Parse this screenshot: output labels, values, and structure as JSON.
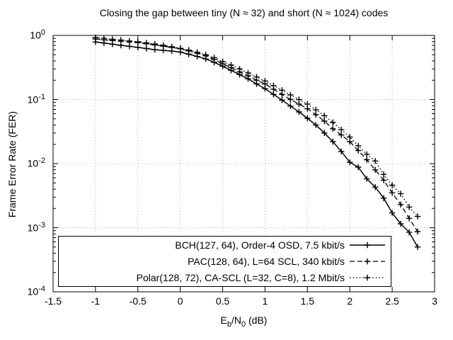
{
  "title": "Closing the gap between tiny (N ≈ 32) and short (N ≈ 1024) codes",
  "axes": {
    "ylabel": "Frame Error Rate (FER)",
    "xlabel_plain": "Eb/N0 (dB)",
    "xlabel_parts": {
      "p1": "E",
      "s1": "b",
      "p2": "/N",
      "s2": "0",
      "p3": " (dB)"
    },
    "x_ticks": [
      "-1.5",
      "-1",
      "-0.5",
      "0",
      "0.5",
      "1",
      "1.5",
      "2",
      "2.5",
      "3"
    ],
    "y_tick_exponents": [
      0,
      -1,
      -2,
      -3,
      -4
    ],
    "x_range": [
      -1.5,
      3
    ],
    "y_range": [
      0.0001,
      1
    ],
    "y_scale": "log",
    "grid": true
  },
  "colors": {
    "line": "#000000",
    "grid": "#b0b0b0",
    "background": "#ffffff",
    "text": "#000000"
  },
  "chart_data": {
    "type": "line",
    "title": "Closing the gap between tiny (N ≈ 32) and short (N ≈ 1024) codes",
    "xlabel": "Eb/N0 (dB)",
    "ylabel": "Frame Error Rate (FER)",
    "xlim": [
      -1.5,
      3
    ],
    "ylim": [
      0.0001,
      1
    ],
    "yscale": "log",
    "grid": true,
    "legend_position": "inside bottom, right-aligned labels",
    "x": [
      -1.0,
      -0.9,
      -0.8,
      -0.7,
      -0.6,
      -0.5,
      -0.4,
      -0.3,
      -0.2,
      -0.1,
      0.0,
      0.1,
      0.2,
      0.3,
      0.4,
      0.5,
      0.6,
      0.7,
      0.8,
      0.9,
      1.0,
      1.1,
      1.2,
      1.3,
      1.4,
      1.5,
      1.6,
      1.7,
      1.8,
      1.9,
      2.0,
      2.1,
      2.2,
      2.3,
      2.4,
      2.5,
      2.6,
      2.7,
      2.8
    ],
    "series": [
      {
        "name": "BCH(127, 64), Order-4 OSD, 7.5 kbit/s",
        "style": "solid",
        "marker": "plus",
        "values": [
          0.79,
          0.76,
          0.73,
          0.7,
          0.675,
          0.65,
          0.625,
          0.6,
          0.585,
          0.57,
          0.55,
          0.51,
          0.47,
          0.43,
          0.38,
          0.33,
          0.285,
          0.245,
          0.21,
          0.175,
          0.148,
          0.12,
          0.098,
          0.079,
          0.064,
          0.051,
          0.04,
          0.03,
          0.022,
          0.0155,
          0.0105,
          0.0088,
          0.0058,
          0.0043,
          0.0029,
          0.0017,
          0.00115,
          0.00085,
          0.0005
        ]
      },
      {
        "name": "PAC(128, 64), L=64 SCL, 340 kbit/s",
        "style": "dashed",
        "marker": "plus",
        "values": [
          0.88,
          0.855,
          0.83,
          0.81,
          0.79,
          0.77,
          0.74,
          0.71,
          0.68,
          0.65,
          0.62,
          0.575,
          0.53,
          0.48,
          0.42,
          0.36,
          0.315,
          0.27,
          0.235,
          0.2,
          0.175,
          0.145,
          0.12,
          0.1,
          0.085,
          0.072,
          0.058,
          0.046,
          0.035,
          0.028,
          0.022,
          0.016,
          0.0115,
          0.008,
          0.0055,
          0.0035,
          0.0023,
          0.0014,
          0.00087
        ]
      },
      {
        "name": "Polar(128, 72), CA-SCL (L=32, C=8), 1.2 Mbit/s",
        "style": "dotted",
        "marker": "plus",
        "values": [
          0.93,
          0.9,
          0.87,
          0.845,
          0.82,
          0.795,
          0.765,
          0.735,
          0.7,
          0.665,
          0.63,
          0.59,
          0.545,
          0.5,
          0.45,
          0.39,
          0.345,
          0.3,
          0.26,
          0.225,
          0.195,
          0.165,
          0.14,
          0.118,
          0.1,
          0.085,
          0.069,
          0.056,
          0.044,
          0.034,
          0.026,
          0.019,
          0.014,
          0.011,
          0.0068,
          0.0046,
          0.0034,
          0.0021,
          0.0015
        ]
      }
    ]
  }
}
